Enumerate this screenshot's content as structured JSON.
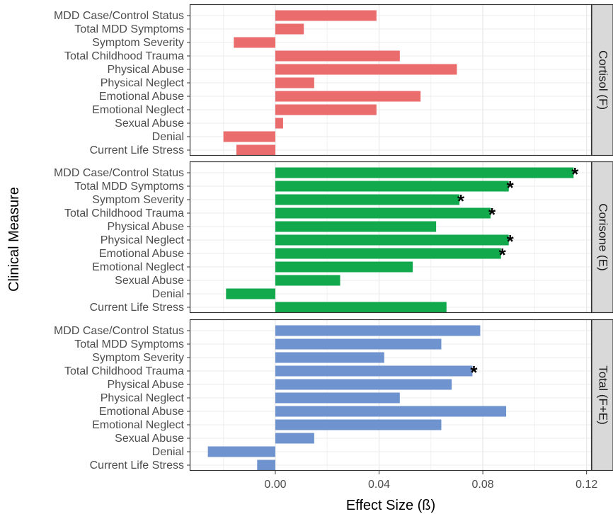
{
  "chart_data": {
    "type": "bar",
    "orientation": "horizontal",
    "xlabel": "Effect Size (ß)",
    "ylabel": "Clinical Measure",
    "xlim": [
      -0.033,
      0.122
    ],
    "x_ticks": [
      "0.00",
      "0.04",
      "0.08",
      "0.12"
    ],
    "x_tick_values": [
      0,
      0.04,
      0.08,
      0.12
    ],
    "grid": true,
    "categories": [
      "MDD Case/Control Status",
      "Total MDD Symptoms",
      "Symptom Severity",
      "Total Childhood Trauma",
      "Physical Abuse",
      "Physical Neglect",
      "Emotional Abuse",
      "Emotional Neglect",
      "Sexual Abuse",
      "Denial",
      "Current Life Stress"
    ],
    "panels": [
      {
        "strip": "Cortisol (F)",
        "color": "#ea6c6c",
        "values": [
          0.039,
          0.011,
          -0.016,
          0.048,
          0.07,
          0.015,
          0.056,
          0.039,
          0.003,
          -0.02,
          -0.015
        ],
        "significant": [
          false,
          false,
          false,
          false,
          false,
          false,
          false,
          false,
          false,
          false,
          false
        ]
      },
      {
        "strip": "Corisone (E)",
        "color": "#12a84c",
        "values": [
          0.115,
          0.09,
          0.071,
          0.083,
          0.062,
          0.09,
          0.087,
          0.053,
          0.025,
          -0.019,
          0.066
        ],
        "significant": [
          true,
          true,
          true,
          true,
          false,
          true,
          true,
          false,
          false,
          false,
          false
        ]
      },
      {
        "strip": "Total (F+E)",
        "color": "#6f93cf",
        "values": [
          0.079,
          0.064,
          0.042,
          0.076,
          0.068,
          0.048,
          0.089,
          0.064,
          0.015,
          -0.026,
          -0.007
        ],
        "significant": [
          false,
          false,
          false,
          true,
          false,
          false,
          false,
          false,
          false,
          false,
          false
        ]
      }
    ],
    "significance_marker": "*"
  }
}
